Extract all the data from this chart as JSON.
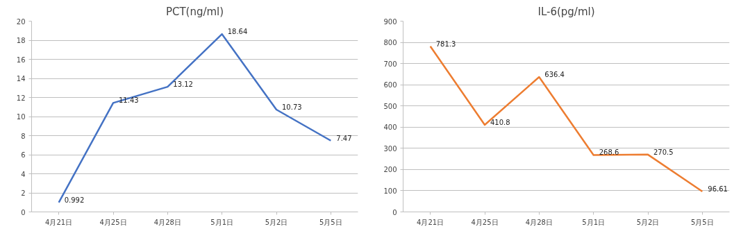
{
  "chart_data": [
    {
      "type": "line",
      "title": "PCT(ng/ml)",
      "categories": [
        "4月21日",
        "4月25日",
        "4月28日",
        "5月1日",
        "5月2日",
        "5月5日"
      ],
      "series": [
        {
          "color": "#4472c4",
          "values": [
            0.992,
            11.43,
            13.12,
            18.64,
            10.73,
            7.47
          ]
        }
      ],
      "ylim": [
        0,
        20
      ],
      "yticks": [
        0,
        2,
        4,
        6,
        8,
        10,
        12,
        14,
        16,
        18,
        20
      ],
      "grid": "y",
      "data_labels": true,
      "marker": "none",
      "line_style": "solid"
    },
    {
      "type": "line",
      "title": "IL-6(pg/ml)",
      "categories": [
        "4月21日",
        "4月25日",
        "4月28日",
        "5月1日",
        "5月2日",
        "5月5日"
      ],
      "series": [
        {
          "color": "#ed7d31",
          "values": [
            781.3,
            410.8,
            636.4,
            268.6,
            270.5,
            96.61
          ]
        }
      ],
      "ylim": [
        0,
        900
      ],
      "yticks": [
        0,
        100,
        200,
        300,
        400,
        500,
        600,
        700,
        800,
        900
      ],
      "grid": "y",
      "data_labels": true,
      "marker": "none",
      "line_style": "solid"
    }
  ]
}
